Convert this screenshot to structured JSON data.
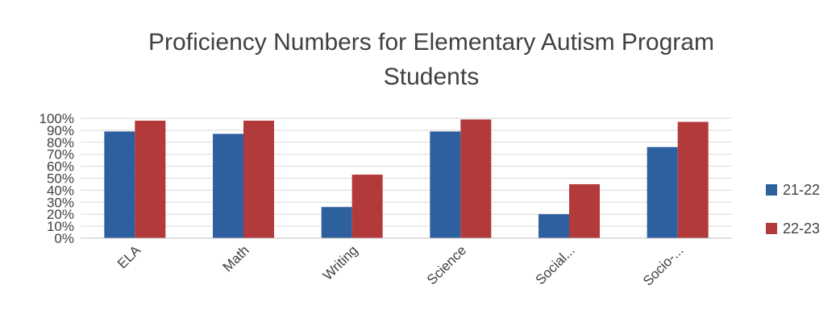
{
  "chart_data": {
    "type": "bar",
    "title_lines": [
      "Proficiency Numbers for Elementary Autism Program",
      "Students"
    ],
    "categories": [
      "ELA",
      "Math",
      "Writing",
      "Science",
      "Social...",
      "Socio-..."
    ],
    "series": [
      {
        "name": "21-22",
        "color": "#2e5f9e",
        "values": [
          89,
          87,
          26,
          89,
          20,
          76
        ]
      },
      {
        "name": "22-23",
        "color": "#b33a3a",
        "values": [
          98,
          98,
          53,
          99,
          45,
          97
        ]
      }
    ],
    "ylim": [
      0,
      100
    ],
    "yticks": [
      "0%",
      "10%",
      "20%",
      "30%",
      "40%",
      "50%",
      "60%",
      "70%",
      "80%",
      "90%",
      "100%"
    ],
    "grid": true,
    "legend_position": "right"
  }
}
